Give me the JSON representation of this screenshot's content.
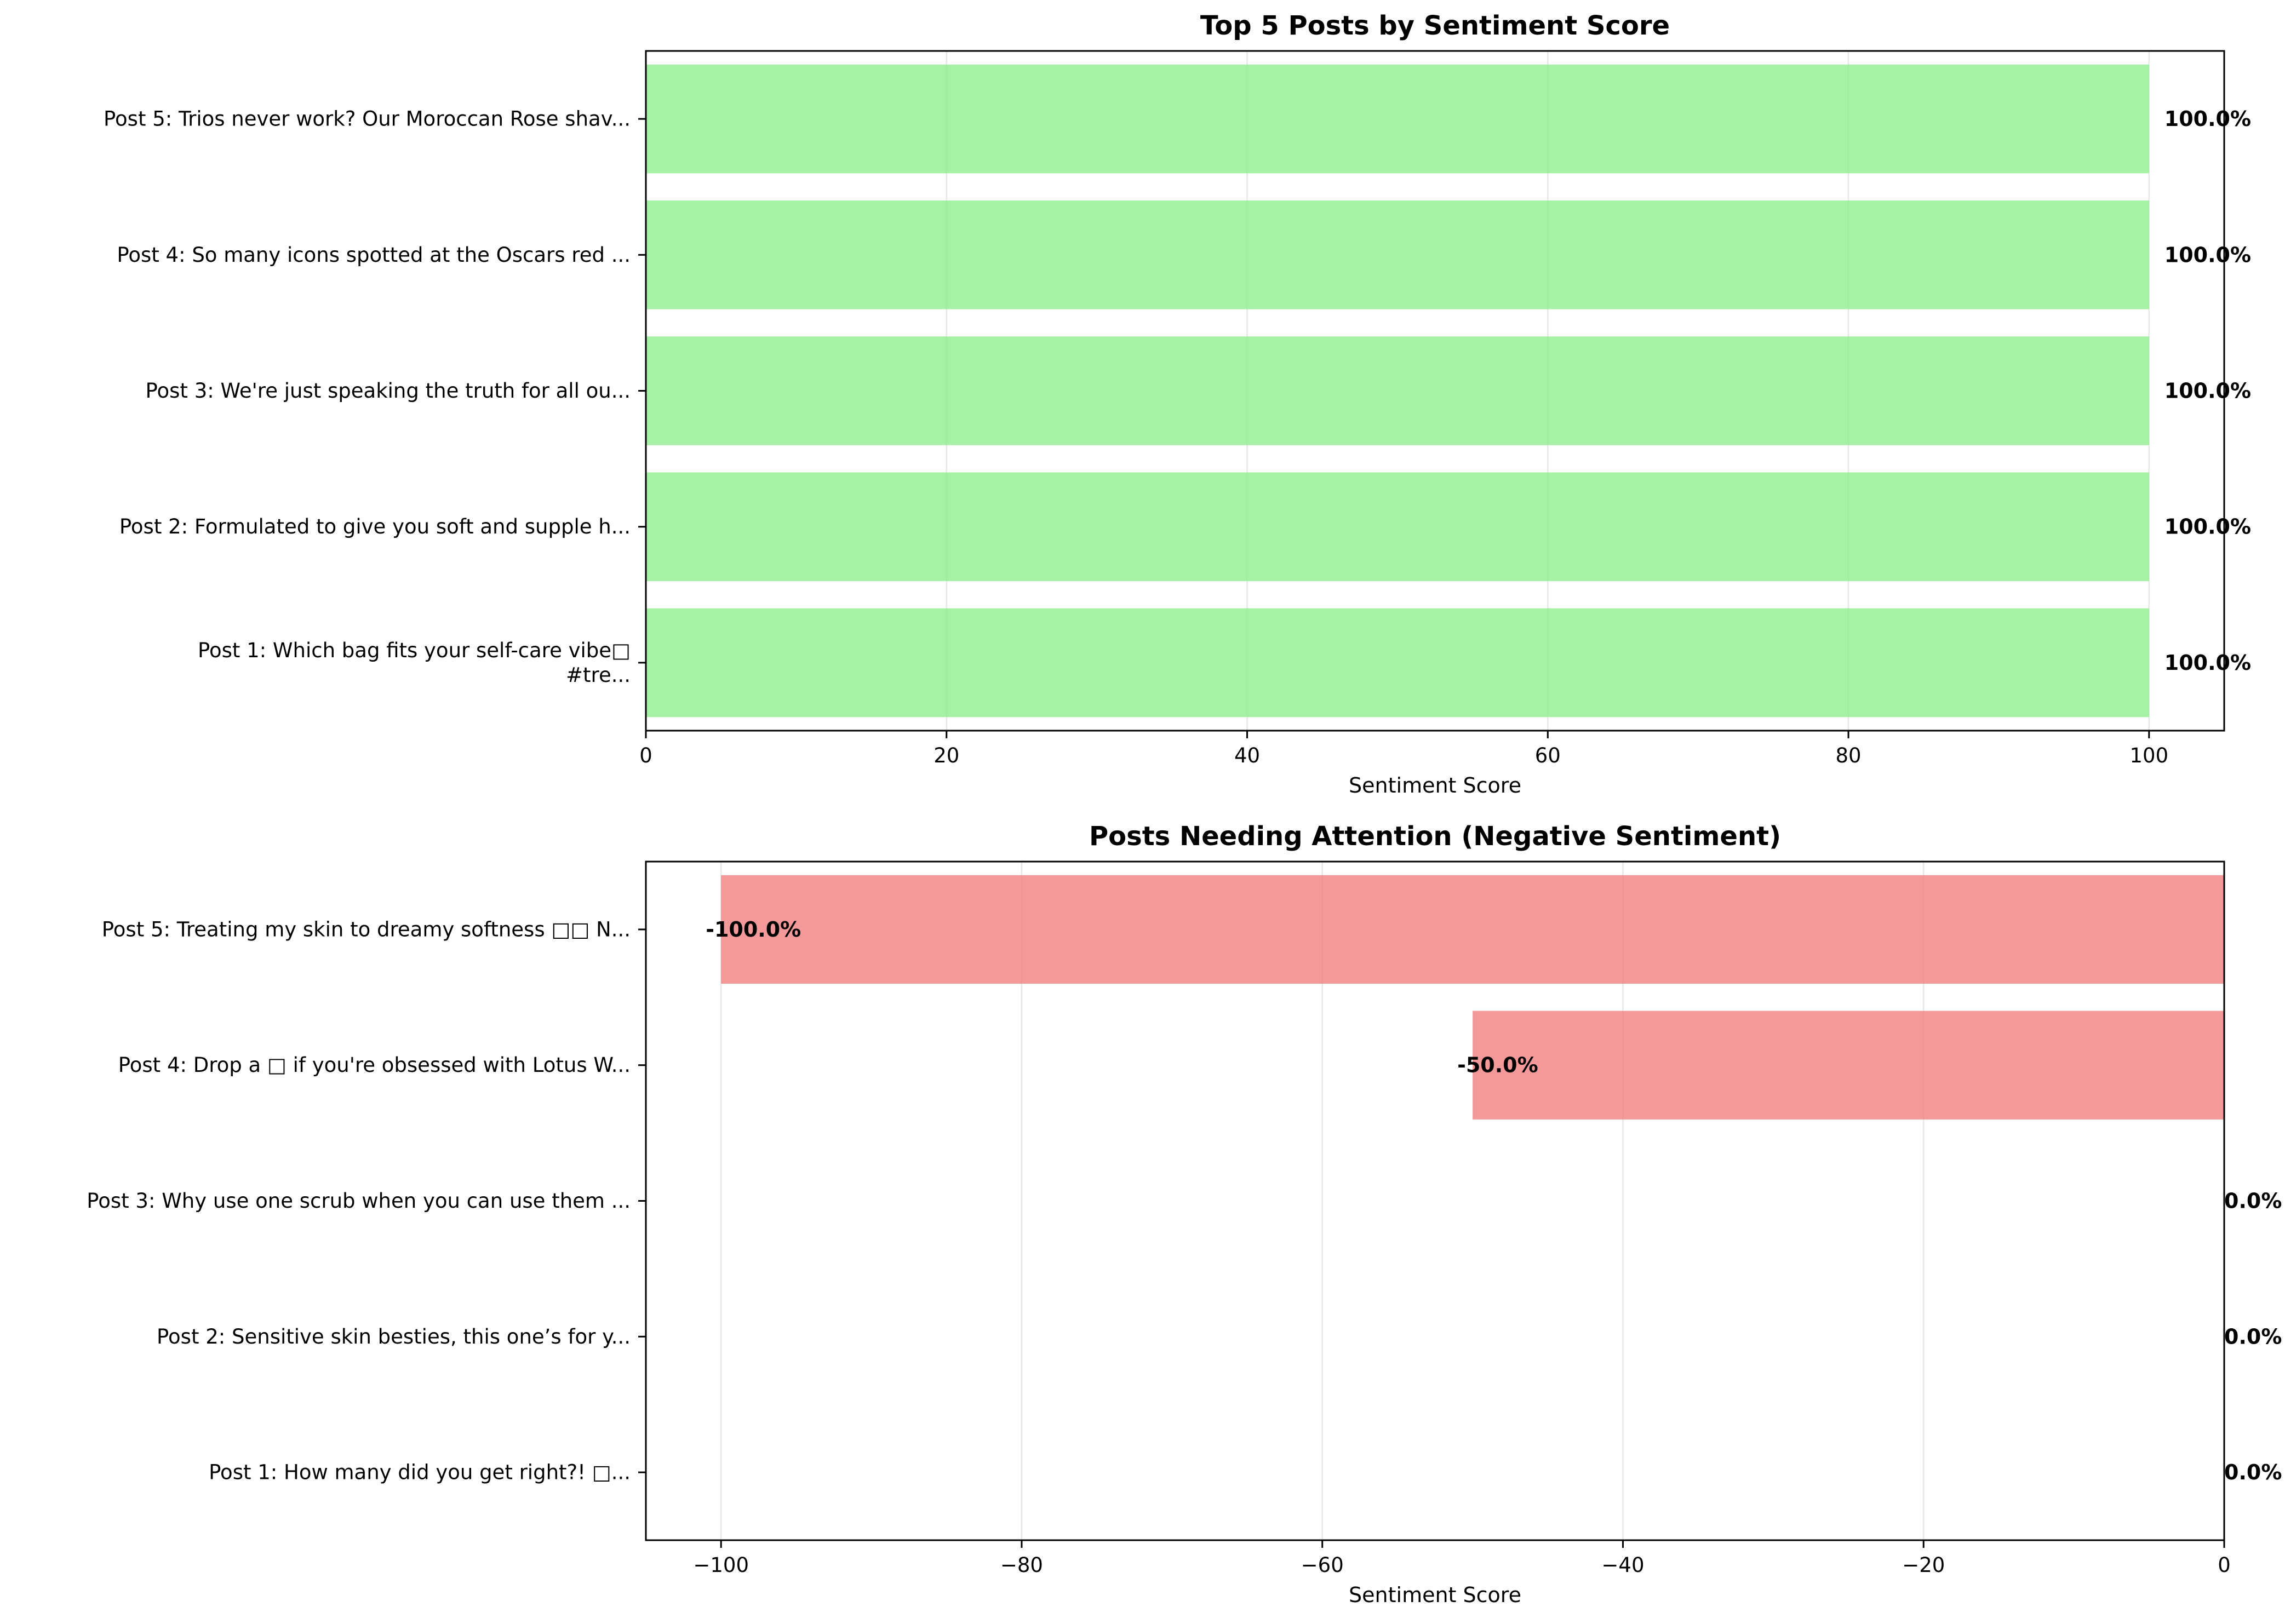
{
  "chart_data": [
    {
      "type": "bar",
      "orientation": "horizontal",
      "title": "Top 5 Posts by Sentiment Score",
      "xlabel": "Sentiment Score",
      "ylabel": "",
      "categories": [
        "Post 1: Which bag fits your self-care vibe□\n#tre...",
        "Post 2: Formulated to give you soft and supple h...",
        "Post 3: We're just speaking the truth for all ou...",
        "Post 4: So many icons spotted at the Oscars red ...",
        "Post 5: Trios never work? Our Moroccan Rose shav..."
      ],
      "values": [
        100.0,
        100.0,
        100.0,
        100.0,
        100.0
      ],
      "data_labels": [
        "100.0%",
        "100.0%",
        "100.0%",
        "100.0%",
        "100.0%"
      ],
      "xlim": [
        0,
        105
      ],
      "xticks": [
        0,
        20,
        40,
        60,
        80,
        100
      ],
      "xtick_labels": [
        "0",
        "20",
        "40",
        "60",
        "80",
        "100"
      ],
      "grid": "vertical",
      "color": "#90ee90"
    },
    {
      "type": "bar",
      "orientation": "horizontal",
      "title": "Posts Needing Attention (Negative Sentiment)",
      "xlabel": "Sentiment Score",
      "ylabel": "",
      "categories": [
        "Post 1: How many did you get right?! □...",
        "Post 2: Sensitive skin besties, this one’s for y...",
        "Post 3: Why use one scrub when you can use them ...",
        "Post 4: Drop a □ if you're obsessed with Lotus W...",
        "Post 5: Treating my skin to dreamy softness □□ N..."
      ],
      "values": [
        0.0,
        0.0,
        0.0,
        -50.0,
        -100.0
      ],
      "data_labels": [
        "0.0%",
        "0.0%",
        "0.0%",
        "-50.0%",
        "-100.0%"
      ],
      "xlim": [
        -105,
        0
      ],
      "xticks": [
        -100,
        -80,
        -60,
        -40,
        -20,
        0
      ],
      "xtick_labels": [
        "−100",
        "−80",
        "−60",
        "−40",
        "−20",
        "0"
      ],
      "grid": "vertical",
      "color": "#f08080"
    }
  ]
}
